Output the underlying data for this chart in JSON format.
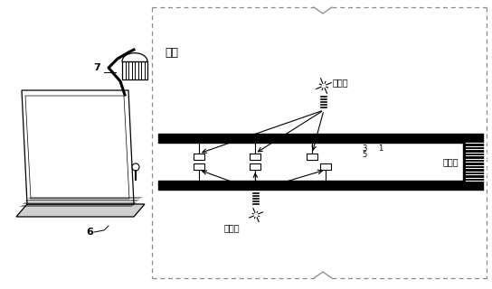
{
  "bg_color": "#ffffff",
  "line_color": "#000000",
  "dashed_color": "#888888",
  "text_color": "#000000",
  "fig_width": 5.44,
  "fig_height": 3.2,
  "dpi": 100,
  "label_weiya": "围岩",
  "label_zhangzimian": "掌子面",
  "label_weizhenyuan1": "微震源",
  "label_weizhenyuan2": "微震源",
  "label_7": "7",
  "label_6": "6",
  "label_3": "3",
  "label_5": "5",
  "label_1": "1"
}
